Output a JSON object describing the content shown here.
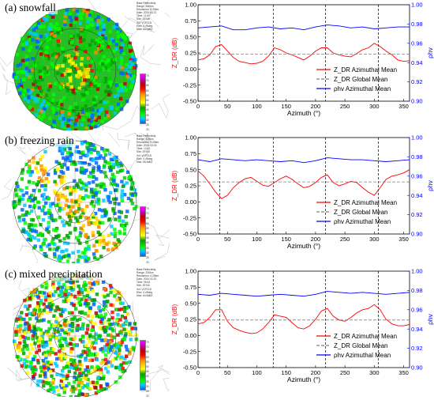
{
  "panels": [
    {
      "label": "(a) snowfall",
      "meta": [
        "Base Reflectivity",
        "Range: 230km",
        "Resolution: 0.25km",
        "Date: 2024.01.21",
        "Time: 11:00",
        "Site: Z9740",
        "Vol: VCP21D",
        "Elev: 0.49deg",
        "Max: 33.0dBZ"
      ],
      "colorbar": [
        "75",
        "70",
        "65",
        "60",
        "55",
        "50",
        "45",
        "40",
        "35",
        "30",
        "25",
        "20"
      ]
    },
    {
      "label": "(b) freezing rain",
      "meta": [
        "Base Reflectivity",
        "Range: 230km",
        "Resolution: 0.25km",
        "Date: 2024.02.03",
        "Time: 13:42",
        "Site: Z9740",
        "Vol: VCP21D",
        "Elev: 0.49deg",
        "Max: 55.5dBZ"
      ],
      "colorbar": [
        "75",
        "70",
        "65",
        "60",
        "55",
        "50",
        "45",
        "40",
        "35",
        "30",
        "25",
        "20"
      ]
    },
    {
      "label": "(c) mixed precipitation",
      "meta": [
        "Base Reflectivity",
        "Range: 230km",
        "Resolution: 0.25km",
        "Date: 2024.02.20",
        "Time: 06:42",
        "Site: Z9740",
        "Vol: VCP21D",
        "Elev: 0.49deg",
        "Max: 64.5dBZ"
      ],
      "colorbar": [
        "75",
        "70",
        "65",
        "60",
        "55",
        "50",
        "45",
        "40",
        "35",
        "30",
        "25",
        "20"
      ]
    }
  ],
  "colors": {
    "zdr": "#ff0000",
    "rhohv": "#0000ff",
    "global": "#808080",
    "ticks_right": "#0000ff"
  },
  "chart_data": [
    {
      "type": "line",
      "xlabel": "Azimuth (°)",
      "ylabel": "Z_DR (dB)",
      "y2label": "ρhv",
      "xlim": [
        0,
        360
      ],
      "ylim": [
        -0.5,
        1.0
      ],
      "y2lim": [
        0.9,
        1.0
      ],
      "xticks": [
        0,
        50,
        100,
        150,
        200,
        250,
        300,
        350
      ],
      "yticks": [
        -0.5,
        -0.25,
        0.0,
        0.25,
        0.5,
        0.75,
        1.0
      ],
      "y2ticks": [
        0.9,
        0.92,
        0.94,
        0.96,
        0.98,
        1.0
      ],
      "vlines": [
        37,
        128,
        217,
        307
      ],
      "legend": [
        "Z_DR Azimuthal Mean",
        "Z_DR Global Mean",
        "ρhv Azimuthal Mean"
      ],
      "legend_position": "lower-right",
      "series": [
        {
          "name": "ZDR Azimuthal Mean",
          "axis": "left",
          "color": "#ff0000",
          "x": [
            0,
            10,
            20,
            30,
            40,
            50,
            60,
            70,
            80,
            90,
            100,
            110,
            120,
            130,
            140,
            150,
            160,
            170,
            180,
            190,
            200,
            210,
            220,
            230,
            240,
            250,
            260,
            270,
            280,
            290,
            300,
            310,
            320,
            330,
            340,
            350,
            360
          ],
          "y": [
            0.14,
            0.16,
            0.22,
            0.35,
            0.38,
            0.28,
            0.18,
            0.12,
            0.1,
            0.08,
            0.09,
            0.12,
            0.2,
            0.33,
            0.3,
            0.25,
            0.22,
            0.18,
            0.14,
            0.2,
            0.28,
            0.33,
            0.33,
            0.25,
            0.22,
            0.2,
            0.19,
            0.24,
            0.3,
            0.33,
            0.4,
            0.35,
            0.28,
            0.22,
            0.14,
            0.12,
            0.13
          ]
        },
        {
          "name": "ZDR Global Mean",
          "axis": "left",
          "color": "#808080",
          "dashed": true,
          "x": [
            0,
            360
          ],
          "y": [
            0.23,
            0.23
          ]
        },
        {
          "name": "ρhv Azimuthal Mean",
          "axis": "right",
          "color": "#0000ff",
          "x": [
            0,
            20,
            40,
            60,
            80,
            100,
            120,
            140,
            160,
            180,
            200,
            220,
            240,
            260,
            280,
            300,
            320,
            340,
            360
          ],
          "y": [
            0.976,
            0.977,
            0.978,
            0.974,
            0.974,
            0.976,
            0.977,
            0.975,
            0.976,
            0.974,
            0.977,
            0.979,
            0.978,
            0.976,
            0.977,
            0.975,
            0.976,
            0.977,
            0.977
          ]
        }
      ]
    },
    {
      "type": "line",
      "xlabel": "Azimuth (°)",
      "ylabel": "Z_DR (dB)",
      "y2label": "ρhv",
      "xlim": [
        0,
        360
      ],
      "ylim": [
        -0.5,
        1.0
      ],
      "y2lim": [
        0.9,
        1.0
      ],
      "xticks": [
        0,
        50,
        100,
        150,
        200,
        250,
        300,
        350
      ],
      "yticks": [
        -0.5,
        -0.25,
        0.0,
        0.25,
        0.5,
        0.75,
        1.0
      ],
      "y2ticks": [
        0.9,
        0.92,
        0.94,
        0.96,
        0.98,
        1.0
      ],
      "vlines": [
        37,
        128,
        217,
        307
      ],
      "legend": [
        "Z_DR Azimuthal Mean",
        "Z_DR Global Mean",
        "ρhv Azimuthal Mean"
      ],
      "legend_position": "lower-right",
      "series": [
        {
          "name": "ZDR Azimuthal Mean",
          "axis": "left",
          "color": "#ff0000",
          "x": [
            0,
            10,
            20,
            30,
            40,
            50,
            60,
            70,
            80,
            90,
            100,
            110,
            120,
            130,
            140,
            150,
            160,
            170,
            180,
            190,
            200,
            210,
            220,
            230,
            240,
            250,
            260,
            270,
            280,
            290,
            300,
            310,
            320,
            330,
            340,
            350,
            360
          ],
          "y": [
            0.48,
            0.4,
            0.28,
            0.15,
            0.05,
            0.1,
            0.22,
            0.3,
            0.36,
            0.38,
            0.32,
            0.26,
            0.24,
            0.3,
            0.36,
            0.4,
            0.35,
            0.28,
            0.22,
            0.24,
            0.3,
            0.38,
            0.42,
            0.3,
            0.25,
            0.28,
            0.32,
            0.3,
            0.22,
            0.15,
            0.1,
            0.22,
            0.35,
            0.4,
            0.42,
            0.45,
            0.5
          ]
        },
        {
          "name": "ZDR Global Mean",
          "axis": "left",
          "color": "#808080",
          "dashed": true,
          "x": [
            0,
            360
          ],
          "y": [
            0.31,
            0.31
          ]
        },
        {
          "name": "ρhv Azimuthal Mean",
          "axis": "right",
          "color": "#0000ff",
          "x": [
            0,
            20,
            40,
            60,
            80,
            100,
            120,
            140,
            160,
            180,
            200,
            220,
            240,
            260,
            280,
            300,
            320,
            340,
            360
          ],
          "y": [
            0.977,
            0.975,
            0.978,
            0.977,
            0.976,
            0.977,
            0.976,
            0.975,
            0.976,
            0.974,
            0.976,
            0.979,
            0.978,
            0.977,
            0.977,
            0.976,
            0.975,
            0.976,
            0.977
          ]
        }
      ]
    },
    {
      "type": "line",
      "xlabel": "Azimuth (°)",
      "ylabel": "Z_DR (dB)",
      "y2label": "ρhv",
      "xlim": [
        0,
        360
      ],
      "ylim": [
        -0.5,
        1.0
      ],
      "y2lim": [
        0.9,
        1.0
      ],
      "xticks": [
        0,
        50,
        100,
        150,
        200,
        250,
        300,
        350
      ],
      "yticks": [
        -0.5,
        -0.25,
        0.0,
        0.25,
        0.5,
        0.75,
        1.0
      ],
      "y2ticks": [
        0.9,
        0.92,
        0.94,
        0.96,
        0.98,
        1.0
      ],
      "vlines": [
        37,
        128,
        217,
        307
      ],
      "legend": [
        "Z_DR Azimuthal Mean",
        "Z_DR Global Mean",
        "ρhv Azimuthal Mean"
      ],
      "legend_position": "lower-right",
      "series": [
        {
          "name": "ZDR Azimuthal Mean",
          "axis": "left",
          "color": "#ff0000",
          "x": [
            0,
            10,
            20,
            30,
            40,
            50,
            60,
            70,
            80,
            90,
            100,
            110,
            120,
            130,
            140,
            150,
            160,
            170,
            180,
            190,
            200,
            210,
            220,
            230,
            240,
            250,
            260,
            270,
            280,
            290,
            300,
            310,
            320,
            330,
            340,
            350,
            360
          ],
          "y": [
            0.18,
            0.2,
            0.28,
            0.4,
            0.4,
            0.22,
            0.12,
            0.08,
            0.05,
            0.03,
            0.04,
            0.1,
            0.2,
            0.32,
            0.3,
            0.28,
            0.2,
            0.12,
            0.1,
            0.15,
            0.25,
            0.38,
            0.42,
            0.3,
            0.24,
            0.22,
            0.28,
            0.35,
            0.4,
            0.42,
            0.48,
            0.4,
            0.25,
            0.18,
            0.15,
            0.15,
            0.17
          ]
        },
        {
          "name": "ZDR Global Mean",
          "axis": "left",
          "color": "#808080",
          "dashed": true,
          "x": [
            0,
            360
          ],
          "y": [
            0.24,
            0.24
          ]
        },
        {
          "name": "ρhv Azimuthal Mean",
          "axis": "right",
          "color": "#0000ff",
          "x": [
            0,
            20,
            40,
            60,
            80,
            100,
            120,
            140,
            160,
            180,
            200,
            220,
            240,
            260,
            280,
            300,
            320,
            340,
            360
          ],
          "y": [
            0.976,
            0.975,
            0.977,
            0.976,
            0.975,
            0.974,
            0.975,
            0.976,
            0.975,
            0.974,
            0.976,
            0.979,
            0.978,
            0.977,
            0.978,
            0.977,
            0.976,
            0.977,
            0.978
          ]
        }
      ]
    }
  ]
}
